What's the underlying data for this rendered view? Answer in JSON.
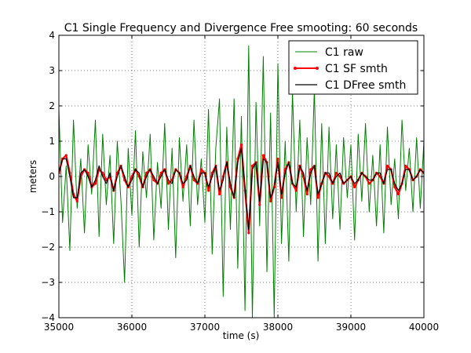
{
  "chart_data": {
    "type": "line",
    "title": "C1 Single Frequency and Divergence Free smooting: 60 seconds",
    "xlabel": "time (s)",
    "ylabel": "meters",
    "xlim": [
      35000,
      40000
    ],
    "ylim": [
      -4,
      4
    ],
    "xticks": [
      35000,
      36000,
      37000,
      38000,
      39000,
      40000
    ],
    "yticks": [
      -4,
      -3,
      -2,
      -1,
      0,
      1,
      2,
      3,
      4
    ],
    "grid": true,
    "legend_position": "top-right",
    "series": [
      {
        "name": "C1 raw",
        "color": "#008000",
        "marker": "none",
        "x": [
          35000,
          35050,
          35100,
          35150,
          35200,
          35250,
          35300,
          35350,
          35400,
          35450,
          35500,
          35550,
          35600,
          35650,
          35700,
          35750,
          35800,
          35850,
          35900,
          35950,
          36000,
          36050,
          36100,
          36150,
          36200,
          36250,
          36300,
          36350,
          36400,
          36450,
          36500,
          36550,
          36600,
          36650,
          36700,
          36750,
          36800,
          36850,
          36900,
          36950,
          37000,
          37050,
          37100,
          37150,
          37200,
          37250,
          37300,
          37350,
          37400,
          37450,
          37500,
          37550,
          37600,
          37650,
          37700,
          37750,
          37800,
          37850,
          37900,
          37950,
          38000,
          38050,
          38100,
          38150,
          38200,
          38250,
          38300,
          38350,
          38400,
          38450,
          38500,
          38550,
          38600,
          38650,
          38700,
          38750,
          38800,
          38850,
          38900,
          38950,
          39000,
          39050,
          39100,
          39150,
          39200,
          39250,
          39300,
          39350,
          39400,
          39450,
          39500,
          39550,
          39600,
          39650,
          39700,
          39750,
          39800,
          39850,
          39900,
          39950,
          40000
        ],
        "y": [
          1.9,
          -1.3,
          0.3,
          -2.1,
          1.6,
          -0.9,
          0.5,
          -1.6,
          0.9,
          -0.5,
          1.6,
          -1.7,
          1.2,
          -0.8,
          0.6,
          -1.9,
          1.0,
          -0.7,
          -3.0,
          0.8,
          -1.1,
          1.3,
          -2.0,
          0.7,
          -0.6,
          1.2,
          -1.8,
          0.4,
          -0.9,
          1.5,
          -1.5,
          0.8,
          -2.3,
          1.1,
          -0.7,
          0.9,
          -1.4,
          1.6,
          -0.8,
          0.5,
          -1.3,
          1.9,
          -2.2,
          0.8,
          2.2,
          -3.4,
          1.4,
          -1.5,
          2.2,
          -2.6,
          1.7,
          -3.8,
          3.7,
          -4.0,
          2.1,
          -1.4,
          3.4,
          -2.7,
          1.8,
          -4.0,
          3.2,
          -1.9,
          1.0,
          -2.4,
          2.4,
          -1.0,
          1.6,
          -1.7,
          1.1,
          -0.8,
          2.5,
          -2.4,
          1.5,
          -1.9,
          1.4,
          -1.2,
          0.9,
          -1.5,
          1.1,
          -0.6,
          0.9,
          -1.8,
          1.2,
          -0.7,
          1.5,
          -1.0,
          0.6,
          -1.4,
          0.9,
          -1.6,
          1.4,
          -0.8,
          0.5,
          -1.2,
          1.6,
          -0.4,
          0.8,
          -1.0,
          1.1,
          -0.9,
          1.0
        ]
      },
      {
        "name": "C1 SF smth",
        "color": "#ff0000",
        "marker": "dot",
        "x": [
          35000,
          35050,
          35100,
          35150,
          35200,
          35250,
          35300,
          35350,
          35400,
          35450,
          35500,
          35550,
          35600,
          35650,
          35700,
          35750,
          35800,
          35850,
          35900,
          35950,
          36000,
          36050,
          36100,
          36150,
          36200,
          36250,
          36300,
          36350,
          36400,
          36450,
          36500,
          36550,
          36600,
          36650,
          36700,
          36750,
          36800,
          36850,
          36900,
          36950,
          37000,
          37050,
          37100,
          37150,
          37200,
          37250,
          37300,
          37350,
          37400,
          37450,
          37500,
          37550,
          37600,
          37650,
          37700,
          37750,
          37800,
          37850,
          37900,
          37950,
          38000,
          38050,
          38100,
          38150,
          38200,
          38250,
          38300,
          38350,
          38400,
          38450,
          38500,
          38550,
          38600,
          38650,
          38700,
          38750,
          38800,
          38850,
          38900,
          38950,
          39000,
          39050,
          39100,
          39150,
          39200,
          39250,
          39300,
          39350,
          39400,
          39450,
          39500,
          39550,
          39600,
          39650,
          39700,
          39750,
          39800,
          39850,
          39900,
          39950,
          40000
        ],
        "y": [
          0.1,
          0.5,
          0.6,
          0.1,
          -0.5,
          -0.7,
          0.0,
          0.2,
          0.1,
          -0.3,
          -0.2,
          0.2,
          0.1,
          -0.1,
          0.0,
          -0.4,
          0.1,
          0.3,
          -0.1,
          -0.3,
          0.0,
          0.2,
          0.0,
          -0.3,
          0.1,
          0.2,
          -0.1,
          -0.2,
          0.1,
          0.2,
          -0.2,
          -0.1,
          0.2,
          0.1,
          -0.3,
          0.0,
          0.3,
          -0.1,
          -0.2,
          0.2,
          0.1,
          -0.4,
          0.1,
          0.3,
          -0.5,
          0.0,
          0.4,
          -0.3,
          -0.6,
          0.5,
          0.9,
          -0.4,
          -1.6,
          0.3,
          0.4,
          -0.8,
          0.6,
          0.4,
          -0.7,
          -0.3,
          0.5,
          -0.6,
          0.2,
          0.4,
          -0.2,
          -0.4,
          0.3,
          0.0,
          -0.5,
          0.2,
          0.3,
          -0.6,
          -0.2,
          0.1,
          0.0,
          -0.2,
          0.1,
          0.0,
          -0.2,
          -0.1,
          0.0,
          -0.3,
          -0.1,
          0.1,
          0.0,
          -0.2,
          -0.1,
          0.1,
          0.0,
          -0.2,
          0.3,
          0.2,
          -0.3,
          -0.5,
          -0.2,
          0.3,
          0.2,
          -0.1,
          0.0,
          0.2,
          0.1
        ]
      },
      {
        "name": "C1 DFree smth",
        "color": "#000000",
        "marker": "none",
        "x": [
          35000,
          35050,
          35100,
          35150,
          35200,
          35250,
          35300,
          35350,
          35400,
          35450,
          35500,
          35550,
          35600,
          35650,
          35700,
          35750,
          35800,
          35850,
          35900,
          35950,
          36000,
          36050,
          36100,
          36150,
          36200,
          36250,
          36300,
          36350,
          36400,
          36450,
          36500,
          36550,
          36600,
          36650,
          36700,
          36750,
          36800,
          36850,
          36900,
          36950,
          37000,
          37050,
          37100,
          37150,
          37200,
          37250,
          37300,
          37350,
          37400,
          37450,
          37500,
          37550,
          37600,
          37650,
          37700,
          37750,
          37800,
          37850,
          37900,
          37950,
          38000,
          38050,
          38100,
          38150,
          38200,
          38250,
          38300,
          38350,
          38400,
          38450,
          38500,
          38550,
          38600,
          38650,
          38700,
          38750,
          38800,
          38850,
          38900,
          38950,
          39000,
          39050,
          39100,
          39150,
          39200,
          39250,
          39300,
          39350,
          39400,
          39450,
          39500,
          39550,
          39600,
          39650,
          39700,
          39750,
          39800,
          39850,
          39900,
          39950,
          40000
        ],
        "y": [
          0.1,
          0.5,
          0.5,
          0.0,
          -0.6,
          -0.6,
          0.1,
          0.2,
          0.0,
          -0.3,
          -0.1,
          0.3,
          0.0,
          -0.2,
          0.1,
          -0.4,
          0.0,
          0.3,
          0.0,
          -0.3,
          -0.1,
          0.2,
          0.1,
          -0.3,
          0.0,
          0.2,
          0.0,
          -0.2,
          0.0,
          0.2,
          -0.1,
          -0.2,
          0.2,
          0.1,
          -0.2,
          -0.1,
          0.3,
          0.0,
          -0.2,
          0.1,
          0.1,
          -0.3,
          0.0,
          0.3,
          -0.4,
          -0.1,
          0.4,
          -0.2,
          -0.6,
          0.4,
          0.8,
          -0.3,
          -1.5,
          0.2,
          0.4,
          -0.7,
          0.5,
          0.4,
          -0.6,
          -0.3,
          0.4,
          -0.5,
          0.1,
          0.4,
          -0.2,
          -0.3,
          0.3,
          0.1,
          -0.4,
          0.1,
          0.3,
          -0.5,
          -0.2,
          0.1,
          0.1,
          -0.2,
          0.0,
          0.1,
          -0.2,
          -0.1,
          0.0,
          -0.2,
          -0.1,
          0.1,
          0.0,
          -0.1,
          -0.1,
          0.1,
          0.1,
          -0.2,
          0.2,
          0.2,
          -0.2,
          -0.4,
          -0.2,
          0.2,
          0.2,
          -0.1,
          0.0,
          0.2,
          0.1
        ]
      }
    ]
  }
}
